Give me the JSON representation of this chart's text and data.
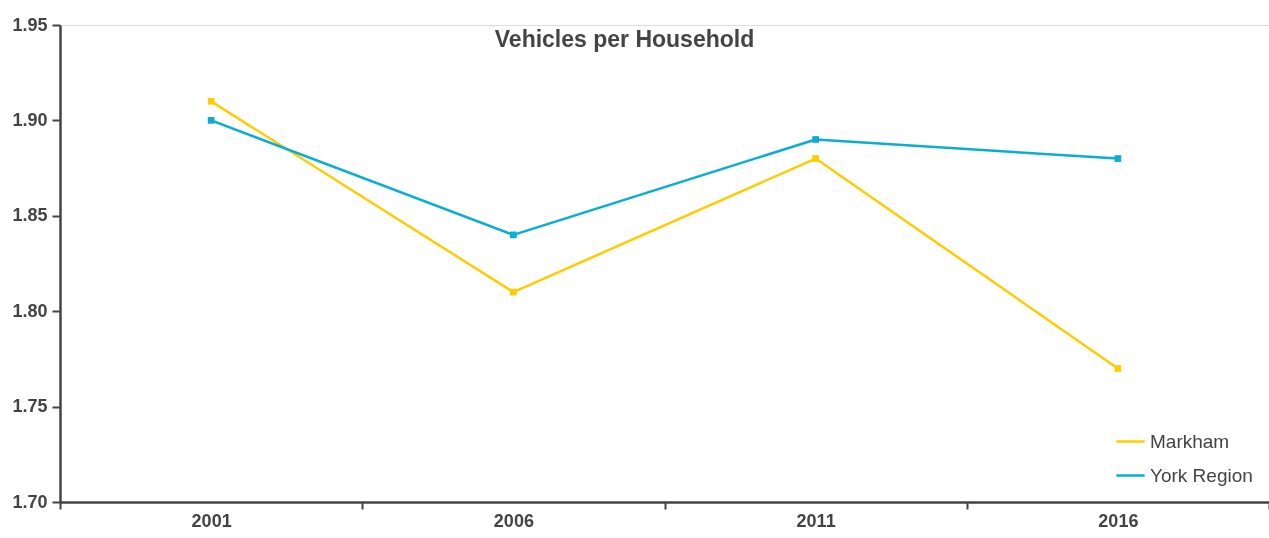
{
  "chart_data": {
    "type": "line",
    "title": "Vehicles per Household",
    "categories": [
      "2001",
      "2006",
      "2011",
      "2016"
    ],
    "series": [
      {
        "name": "Markham",
        "color": "#ffcc00",
        "values": [
          1.91,
          1.81,
          1.88,
          1.77
        ]
      },
      {
        "name": "York Region",
        "color": "#0aaed2",
        "values": [
          1.9,
          1.84,
          1.89,
          1.88
        ]
      }
    ],
    "ylim": [
      1.7,
      1.95
    ],
    "yticks": [
      {
        "value": 1.7,
        "label": "1.70"
      },
      1.75,
      {
        "value": 1.8,
        "label": "1.80"
      },
      1.85,
      {
        "value": 1.9,
        "label": "1.90"
      },
      1.95
    ],
    "marker": "square",
    "line_style": "solid",
    "legend": "bottom right",
    "grid": false
  }
}
